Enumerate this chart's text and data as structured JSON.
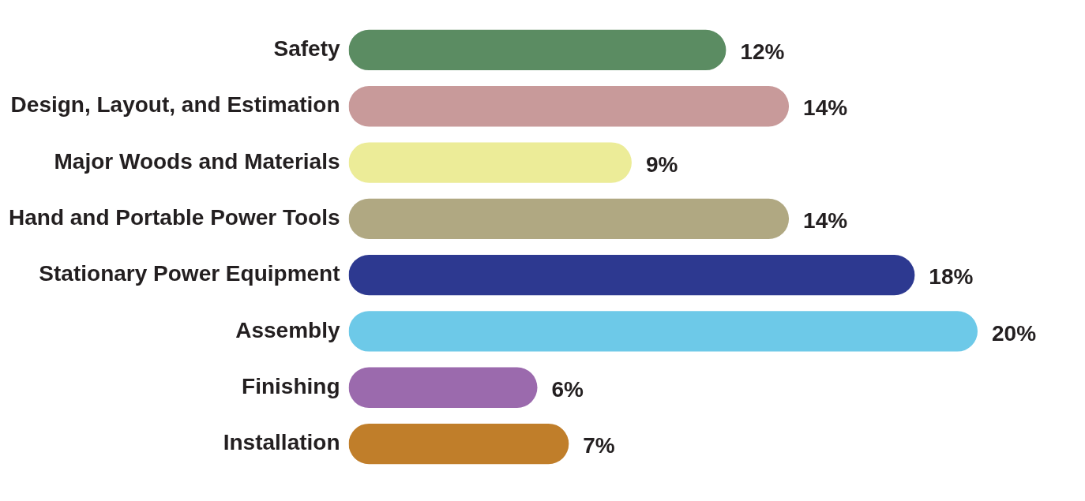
{
  "chart_data": {
    "type": "bar",
    "orientation": "horizontal",
    "categories": [
      "Safety",
      "Design, Layout, and Estimation",
      "Major Woods and Materials",
      "Hand and Portable Power Tools",
      "Stationary Power Equipment",
      "Assembly",
      "Finishing",
      "Installation"
    ],
    "values": [
      12,
      14,
      9,
      14,
      18,
      20,
      6,
      7
    ],
    "value_labels": [
      "12%",
      "14%",
      "9%",
      "14%",
      "18%",
      "20%",
      "6%",
      "7%"
    ],
    "colors": [
      "#5b8c62",
      "#c89a9a",
      "#ecec98",
      "#b0a882",
      "#2d3990",
      "#6dc9e8",
      "#9b6aad",
      "#c07e2a"
    ],
    "data_labels": false
  }
}
